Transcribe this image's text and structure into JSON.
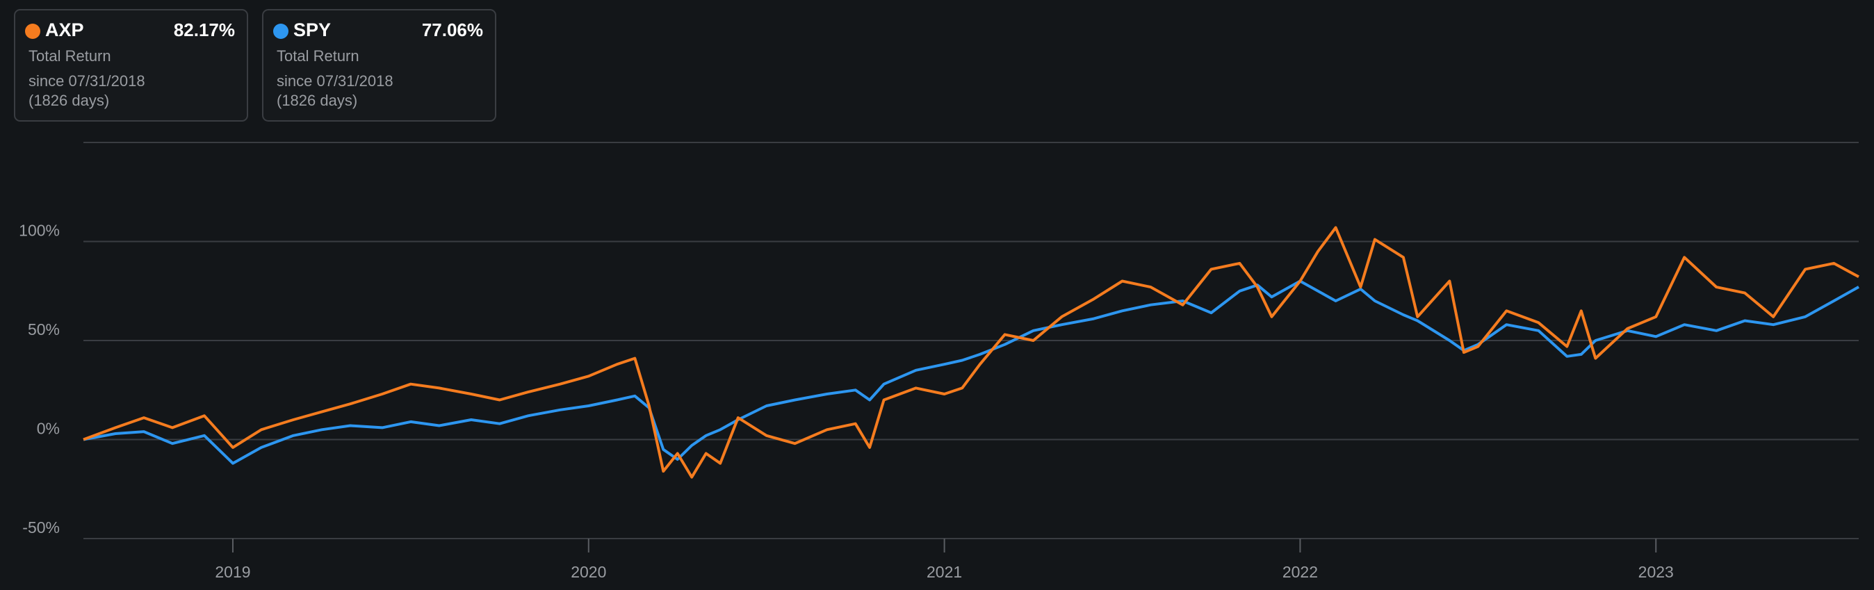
{
  "chart_data": {
    "type": "line",
    "xlim": [
      2018.58,
      2023.57
    ],
    "xticks": [
      2019,
      2020,
      2021,
      2022,
      2023
    ],
    "ylim": [
      -50,
      150
    ],
    "yticks": [
      {
        "value": -50,
        "label": "-50%"
      },
      {
        "value": 0,
        "label": "0%"
      },
      {
        "value": 50,
        "label": "50%"
      },
      {
        "value": 100,
        "label": "100%"
      }
    ],
    "grid": true,
    "x": [
      2018.58,
      2018.67,
      2018.75,
      2018.83,
      2018.92,
      2019.0,
      2019.08,
      2019.17,
      2019.25,
      2019.33,
      2019.42,
      2019.5,
      2019.58,
      2019.67,
      2019.75,
      2019.83,
      2019.92,
      2020.0,
      2020.08,
      2020.13,
      2020.17,
      2020.21,
      2020.25,
      2020.29,
      2020.33,
      2020.37,
      2020.42,
      2020.5,
      2020.58,
      2020.67,
      2020.75,
      2020.79,
      2020.83,
      2020.92,
      2021.0,
      2021.05,
      2021.1,
      2021.17,
      2021.25,
      2021.33,
      2021.42,
      2021.5,
      2021.58,
      2021.67,
      2021.75,
      2021.83,
      2021.88,
      2021.92,
      2022.0,
      2022.05,
      2022.1,
      2022.17,
      2022.21,
      2022.29,
      2022.33,
      2022.42,
      2022.46,
      2022.5,
      2022.58,
      2022.67,
      2022.75,
      2022.79,
      2022.83,
      2022.92,
      2023.0,
      2023.08,
      2023.17,
      2023.25,
      2023.33,
      2023.42,
      2023.5,
      2023.57
    ],
    "series": [
      {
        "name": "AXP",
        "color": "#f57c1f",
        "total_return": "82.17%",
        "metric": "Total Return",
        "since": "since 07/31/2018",
        "days": "(1826 days)",
        "values": [
          0,
          6,
          11,
          6,
          12,
          -4,
          5,
          10,
          14,
          18,
          23,
          28,
          26,
          23,
          20,
          24,
          28,
          32,
          38,
          41,
          17,
          -16,
          -7,
          -19,
          -7,
          -12,
          11,
          2,
          -2,
          5,
          8,
          -4,
          20,
          26,
          23,
          26,
          38,
          53,
          50,
          62,
          71,
          80,
          77,
          68,
          86,
          89,
          77,
          62,
          80,
          95,
          107,
          77,
          101,
          92,
          62,
          80,
          44,
          47,
          65,
          59,
          47,
          65,
          41,
          56,
          62,
          92,
          77,
          74,
          62,
          86,
          89,
          82.17
        ]
      },
      {
        "name": "SPY",
        "color": "#2d96f0",
        "total_return": "77.06%",
        "metric": "Total Return",
        "since": "since 07/31/2018",
        "days": "(1826 days)",
        "values": [
          0,
          3,
          4,
          -2,
          2,
          -12,
          -4,
          2,
          5,
          7,
          6,
          9,
          7,
          10,
          8,
          12,
          15,
          17,
          20,
          22,
          16,
          -5,
          -10,
          -3,
          2,
          5,
          10,
          17,
          20,
          23,
          25,
          20,
          28,
          35,
          38,
          40,
          43,
          48,
          55,
          58,
          61,
          65,
          68,
          70,
          64,
          75,
          78,
          72,
          80,
          75,
          70,
          76,
          70,
          63,
          60,
          50,
          45,
          48,
          58,
          55,
          42,
          43,
          50,
          55,
          52,
          58,
          55,
          60,
          58,
          62,
          70,
          77.06
        ]
      }
    ]
  }
}
